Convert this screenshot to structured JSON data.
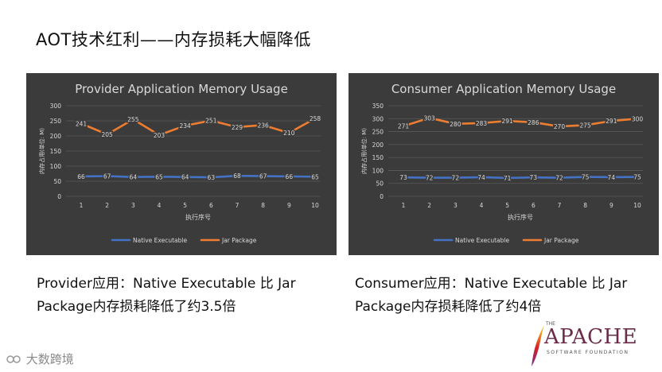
{
  "slide": {
    "title": "AOT技术红利——内存损耗大幅降低",
    "caption_left": "Provider应用：Native Executable 比 Jar Package内存损耗降低了约3.5倍",
    "caption_right": "Consumer应用：Native Executable 比 Jar Package内存损耗降低了约4倍",
    "watermark": "大数跨境",
    "apache_logo_word": "APACHE",
    "apache_logo_sub": "SOFTWARE FOUNDATION",
    "apache_logo_the": "THE"
  },
  "colors": {
    "panel_bg": "#3b3b3b",
    "native": "#4472c4",
    "jar": "#ed7d31",
    "text": "#d9d9d9",
    "grid": "#5a5a5a"
  },
  "chart_data": [
    {
      "type": "line",
      "title": "Provider Application Memory Usage",
      "xlabel": "执行序号",
      "ylabel": "内存占用(单位: M)",
      "x": [
        1,
        2,
        3,
        4,
        5,
        6,
        7,
        8,
        9,
        10
      ],
      "ylim": [
        0,
        300
      ],
      "yticks": [
        0,
        50,
        100,
        150,
        200,
        250,
        300
      ],
      "grid": true,
      "legend": "bottom",
      "series": [
        {
          "name": "Native Executable",
          "color": "#4472c4",
          "values": [
            66,
            67,
            64,
            65,
            64,
            63,
            68,
            67,
            66,
            65
          ]
        },
        {
          "name": "Jar Package",
          "color": "#ed7d31",
          "values": [
            241,
            205,
            255,
            203,
            234,
            251,
            229,
            236,
            210,
            258
          ]
        }
      ]
    },
    {
      "type": "line",
      "title": "Consumer Application Memory Usage",
      "xlabel": "执行序号",
      "ylabel": "内存占用(单位: M)",
      "x": [
        1,
        2,
        3,
        4,
        5,
        6,
        7,
        8,
        9,
        10
      ],
      "ylim": [
        0,
        350
      ],
      "yticks": [
        0,
        50,
        100,
        150,
        200,
        250,
        300,
        350
      ],
      "grid": true,
      "legend": "bottom",
      "series": [
        {
          "name": "Native Executable",
          "color": "#4472c4",
          "values": [
            73,
            72,
            72,
            74,
            71,
            73,
            72,
            75,
            74,
            75
          ]
        },
        {
          "name": "Jar Package",
          "color": "#ed7d31",
          "values": [
            271,
            303,
            280,
            283,
            291,
            286,
            270,
            275,
            291,
            300
          ]
        }
      ]
    }
  ]
}
